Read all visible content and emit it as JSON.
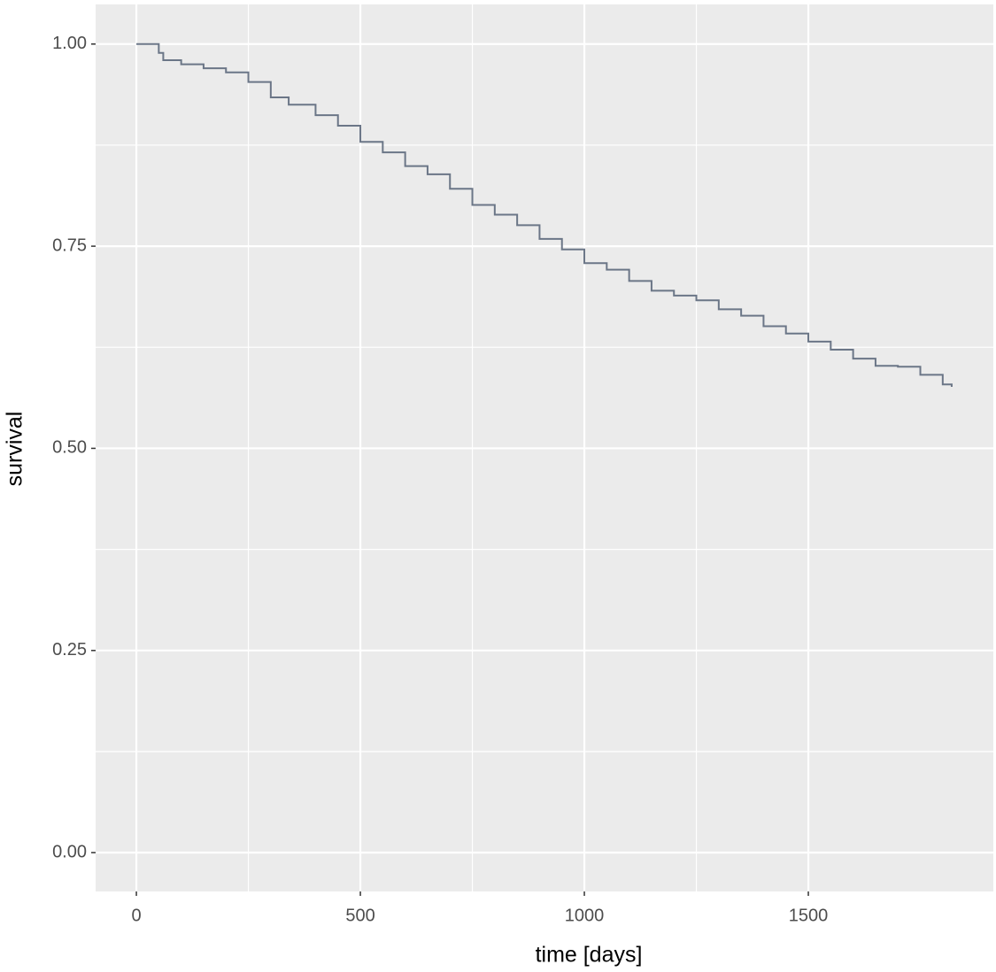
{
  "chart_data": {
    "type": "step",
    "xlabel": "time [days]",
    "ylabel": "survival",
    "xlim": [
      -91,
      1913
    ],
    "ylim": [
      -0.048,
      1.049
    ],
    "xticks": [
      0,
      500,
      1000,
      1500
    ],
    "yticks": [
      {
        "value": 0,
        "label": "0.00"
      },
      {
        "value": 0.25,
        "label": "0.25"
      },
      {
        "value": 0.5,
        "label": "0.50"
      },
      {
        "value": 0.75,
        "label": "0.75"
      },
      {
        "value": 1,
        "label": "1.00"
      }
    ],
    "grid": true,
    "minor_grid": true,
    "series": [
      {
        "color": "#6b7687",
        "x": [
          0,
          50,
          60,
          100,
          150,
          200,
          250,
          300,
          340,
          400,
          450,
          500,
          550,
          600,
          650,
          700,
          750,
          800,
          850,
          900,
          950,
          1000,
          1050,
          1100,
          1150,
          1200,
          1250,
          1300,
          1350,
          1400,
          1450,
          1500,
          1550,
          1600,
          1650,
          1700,
          1750,
          1800,
          1820
        ],
        "values": [
          1.0,
          0.989,
          0.98,
          0.975,
          0.97,
          0.965,
          0.953,
          0.934,
          0.925,
          0.912,
          0.899,
          0.879,
          0.866,
          0.849,
          0.839,
          0.821,
          0.801,
          0.789,
          0.776,
          0.759,
          0.746,
          0.729,
          0.721,
          0.707,
          0.695,
          0.689,
          0.683,
          0.672,
          0.664,
          0.651,
          0.642,
          0.632,
          0.622,
          0.611,
          0.602,
          0.601,
          0.591,
          0.579,
          0.576
        ]
      }
    ]
  }
}
